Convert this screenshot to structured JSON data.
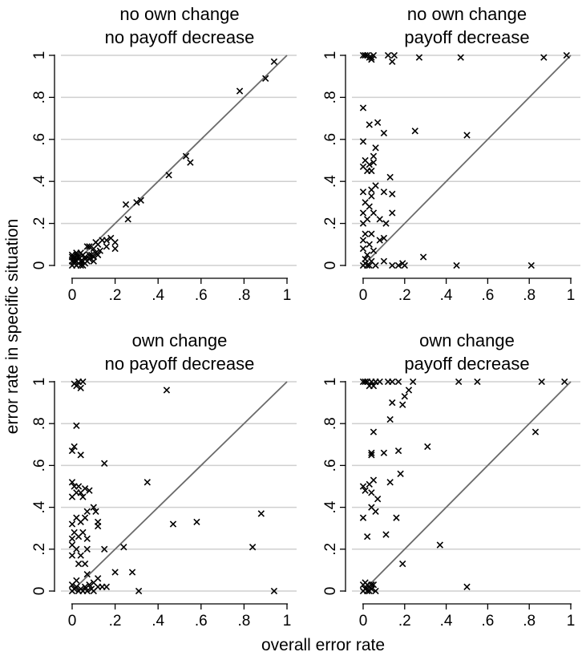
{
  "figure": {
    "xlabel": "overall error rate",
    "ylabel": "error rate in specific situation"
  },
  "chart_data": [
    {
      "type": "scatter",
      "title_lines": [
        "no own change",
        "no payoff decrease"
      ],
      "xlim": [
        0,
        1
      ],
      "ylim": [
        0,
        1
      ],
      "x_ticks": [
        0,
        0.2,
        0.4,
        0.6,
        0.8,
        1
      ],
      "x_tick_labels": [
        "0",
        ".2",
        ".4",
        ".6",
        ".8",
        "1"
      ],
      "y_ticks": [
        0,
        0.2,
        0.4,
        0.6,
        0.8,
        1
      ],
      "y_tick_labels": [
        "0",
        ".2",
        ".4",
        ".6",
        ".8",
        "1"
      ],
      "grid": true,
      "reference_line": "y = x",
      "marker": "x",
      "points": [
        [
          0.94,
          0.97
        ],
        [
          0.9,
          0.89
        ],
        [
          0.78,
          0.83
        ],
        [
          0.53,
          0.52
        ],
        [
          0.55,
          0.49
        ],
        [
          0.45,
          0.43
        ],
        [
          0.32,
          0.31
        ],
        [
          0.3,
          0.3
        ],
        [
          0.25,
          0.29
        ],
        [
          0.26,
          0.22
        ],
        [
          0.2,
          0.11
        ],
        [
          0.18,
          0.13
        ],
        [
          0.16,
          0.12
        ],
        [
          0.14,
          0.12
        ],
        [
          0.2,
          0.08
        ],
        [
          0.16,
          0.09
        ],
        [
          0.12,
          0.1
        ],
        [
          0.11,
          0.11
        ],
        [
          0.1,
          0.08
        ],
        [
          0.08,
          0.09
        ],
        [
          0.07,
          0.09
        ],
        [
          0.13,
          0.07
        ],
        [
          0.12,
          0.05
        ],
        [
          0.1,
          0.04
        ],
        [
          0.08,
          0.05
        ],
        [
          0.06,
          0.04
        ],
        [
          0.05,
          0.05
        ],
        [
          0.04,
          0.06
        ],
        [
          0.03,
          0.04
        ],
        [
          0.02,
          0.05
        ],
        [
          0.01,
          0.04
        ],
        [
          0.0,
          0.04
        ],
        [
          0.0,
          0.02
        ],
        [
          0.0,
          0.0
        ],
        [
          0.01,
          0.01
        ],
        [
          0.02,
          0.0
        ],
        [
          0.03,
          0.01
        ],
        [
          0.04,
          0.0
        ],
        [
          0.05,
          0.02
        ],
        [
          0.06,
          0.01
        ],
        [
          0.07,
          0.02
        ],
        [
          0.08,
          0.03
        ],
        [
          0.02,
          0.02
        ],
        [
          0.01,
          0.03
        ],
        [
          0.03,
          0.03
        ],
        [
          0.04,
          0.02
        ],
        [
          0.05,
          0.0
        ],
        [
          0.06,
          0.03
        ],
        [
          0.09,
          0.05
        ],
        [
          0.11,
          0.06
        ],
        [
          0.1,
          0.02
        ],
        [
          0.02,
          0.06
        ],
        [
          0.0,
          0.05
        ],
        [
          0.01,
          0.02
        ]
      ]
    },
    {
      "type": "scatter",
      "title_lines": [
        "no own change",
        "payoff decrease"
      ],
      "xlim": [
        0,
        1
      ],
      "ylim": [
        0,
        1
      ],
      "x_ticks": [
        0,
        0.2,
        0.4,
        0.6,
        0.8,
        1
      ],
      "x_tick_labels": [
        "0",
        ".2",
        ".4",
        ".6",
        ".8",
        "1"
      ],
      "y_ticks": [
        0,
        0.2,
        0.4,
        0.6,
        0.8,
        1
      ],
      "y_tick_labels": [
        "0",
        ".2",
        ".4",
        ".6",
        ".8",
        "1"
      ],
      "grid": true,
      "reference_line": "y = x",
      "marker": "x",
      "points": [
        [
          0.98,
          1.0
        ],
        [
          0.87,
          0.99
        ],
        [
          0.47,
          0.99
        ],
        [
          0.27,
          0.99
        ],
        [
          0.15,
          1.0
        ],
        [
          0.14,
          0.97
        ],
        [
          0.12,
          1.0
        ],
        [
          0.05,
          1.0
        ],
        [
          0.04,
          0.99
        ],
        [
          0.04,
          0.98
        ],
        [
          0.02,
          1.0
        ],
        [
          0.01,
          1.0
        ],
        [
          0.0,
          1.0
        ],
        [
          0.03,
          0.99
        ],
        [
          0.0,
          0.75
        ],
        [
          0.03,
          0.67
        ],
        [
          0.07,
          0.68
        ],
        [
          0.1,
          0.63
        ],
        [
          0.25,
          0.64
        ],
        [
          0.5,
          0.62
        ],
        [
          0.0,
          0.59
        ],
        [
          0.06,
          0.56
        ],
        [
          0.05,
          0.52
        ],
        [
          0.05,
          0.49
        ],
        [
          0.03,
          0.48
        ],
        [
          0.01,
          0.5
        ],
        [
          0.0,
          0.47
        ],
        [
          0.02,
          0.45
        ],
        [
          0.04,
          0.45
        ],
        [
          0.13,
          0.42
        ],
        [
          0.04,
          0.36
        ],
        [
          0.04,
          0.33
        ],
        [
          0.06,
          0.38
        ],
        [
          0.1,
          0.35
        ],
        [
          0.14,
          0.34
        ],
        [
          0.0,
          0.35
        ],
        [
          0.01,
          0.3
        ],
        [
          0.03,
          0.28
        ],
        [
          0.0,
          0.25
        ],
        [
          0.02,
          0.22
        ],
        [
          0.05,
          0.25
        ],
        [
          0.08,
          0.22
        ],
        [
          0.14,
          0.25
        ],
        [
          0.11,
          0.2
        ],
        [
          0.0,
          0.2
        ],
        [
          0.01,
          0.15
        ],
        [
          0.04,
          0.15
        ],
        [
          0.08,
          0.12
        ],
        [
          0.1,
          0.13
        ],
        [
          0.03,
          0.1
        ],
        [
          0.0,
          0.08
        ],
        [
          0.02,
          0.05
        ],
        [
          0.05,
          0.07
        ],
        [
          0.04,
          0.02
        ],
        [
          0.1,
          0.02
        ],
        [
          0.29,
          0.04
        ],
        [
          0.45,
          0.0
        ],
        [
          0.81,
          0.0
        ],
        [
          0.0,
          0.0
        ],
        [
          0.01,
          0.01
        ],
        [
          0.02,
          0.0
        ],
        [
          0.03,
          0.0
        ],
        [
          0.06,
          0.0
        ],
        [
          0.14,
          0.0
        ],
        [
          0.17,
          0.0
        ],
        [
          0.2,
          0.0
        ],
        [
          0.19,
          0.01
        ],
        [
          0.01,
          0.03
        ],
        [
          0.0,
          0.12
        ]
      ]
    },
    {
      "type": "scatter",
      "title_lines": [
        "own change",
        "no payoff decrease"
      ],
      "xlim": [
        0,
        1
      ],
      "ylim": [
        0,
        1
      ],
      "x_ticks": [
        0,
        0.2,
        0.4,
        0.6,
        0.8,
        1
      ],
      "x_tick_labels": [
        "0",
        ".2",
        ".4",
        ".6",
        ".8",
        "1"
      ],
      "y_ticks": [
        0,
        0.2,
        0.4,
        0.6,
        0.8,
        1
      ],
      "y_tick_labels": [
        "0",
        ".2",
        ".4",
        ".6",
        ".8",
        "1"
      ],
      "grid": true,
      "reference_line": "y = x",
      "marker": "x",
      "points": [
        [
          0.03,
          1.0
        ],
        [
          0.01,
          0.99
        ],
        [
          0.05,
          1.0
        ],
        [
          0.04,
          0.97
        ],
        [
          0.02,
          0.98
        ],
        [
          0.44,
          0.96
        ],
        [
          0.02,
          0.79
        ],
        [
          0.01,
          0.69
        ],
        [
          0.0,
          0.67
        ],
        [
          0.04,
          0.65
        ],
        [
          0.15,
          0.61
        ],
        [
          0.35,
          0.52
        ],
        [
          0.0,
          0.52
        ],
        [
          0.01,
          0.5
        ],
        [
          0.03,
          0.5
        ],
        [
          0.06,
          0.49
        ],
        [
          0.04,
          0.47
        ],
        [
          0.05,
          0.45
        ],
        [
          0.08,
          0.48
        ],
        [
          0.02,
          0.47
        ],
        [
          0.0,
          0.45
        ],
        [
          0.1,
          0.4
        ],
        [
          0.11,
          0.38
        ],
        [
          0.12,
          0.33
        ],
        [
          0.12,
          0.31
        ],
        [
          0.07,
          0.38
        ],
        [
          0.06,
          0.35
        ],
        [
          0.04,
          0.33
        ],
        [
          0.02,
          0.35
        ],
        [
          0.0,
          0.32
        ],
        [
          0.01,
          0.28
        ],
        [
          0.0,
          0.25
        ],
        [
          0.03,
          0.26
        ],
        [
          0.05,
          0.28
        ],
        [
          0.07,
          0.25
        ],
        [
          0.0,
          0.22
        ],
        [
          0.02,
          0.2
        ],
        [
          0.07,
          0.2
        ],
        [
          0.0,
          0.17
        ],
        [
          0.04,
          0.17
        ],
        [
          0.06,
          0.13
        ],
        [
          0.03,
          0.13
        ],
        [
          0.15,
          0.2
        ],
        [
          0.24,
          0.21
        ],
        [
          0.88,
          0.37
        ],
        [
          0.58,
          0.33
        ],
        [
          0.47,
          0.32
        ],
        [
          0.84,
          0.21
        ],
        [
          0.2,
          0.09
        ],
        [
          0.28,
          0.09
        ],
        [
          0.94,
          0.0
        ],
        [
          0.31,
          0.0
        ],
        [
          0.12,
          0.06
        ],
        [
          0.07,
          0.08
        ],
        [
          0.16,
          0.02
        ],
        [
          0.14,
          0.02
        ],
        [
          0.0,
          0.0
        ],
        [
          0.01,
          0.01
        ],
        [
          0.02,
          0.02
        ],
        [
          0.03,
          0.0
        ],
        [
          0.04,
          0.01
        ],
        [
          0.05,
          0.0
        ],
        [
          0.06,
          0.02
        ],
        [
          0.07,
          0.0
        ],
        [
          0.08,
          0.03
        ],
        [
          0.09,
          0.01
        ],
        [
          0.1,
          0.0
        ],
        [
          0.12,
          0.02
        ],
        [
          0.02,
          0.05
        ],
        [
          0.0,
          0.03
        ],
        [
          0.1,
          0.04
        ]
      ]
    },
    {
      "type": "scatter",
      "title_lines": [
        "own change",
        "payoff decrease"
      ],
      "xlim": [
        0,
        1
      ],
      "ylim": [
        0,
        1
      ],
      "x_ticks": [
        0,
        0.2,
        0.4,
        0.6,
        0.8,
        1
      ],
      "x_tick_labels": [
        "0",
        ".2",
        ".4",
        ".6",
        ".8",
        "1"
      ],
      "y_ticks": [
        0,
        0.2,
        0.4,
        0.6,
        0.8,
        1
      ],
      "y_tick_labels": [
        "0",
        ".2",
        ".4",
        ".6",
        ".8",
        "1"
      ],
      "grid": true,
      "reference_line": "y = x",
      "marker": "x",
      "points": [
        [
          0.97,
          1.0
        ],
        [
          0.86,
          1.0
        ],
        [
          0.55,
          1.0
        ],
        [
          0.46,
          1.0
        ],
        [
          0.24,
          1.0
        ],
        [
          0.17,
          1.0
        ],
        [
          0.14,
          1.0
        ],
        [
          0.12,
          1.0
        ],
        [
          0.08,
          1.0
        ],
        [
          0.06,
          1.0
        ],
        [
          0.04,
          1.0
        ],
        [
          0.02,
          1.0
        ],
        [
          0.01,
          1.0
        ],
        [
          0.0,
          1.0
        ],
        [
          0.03,
          0.98
        ],
        [
          0.05,
          0.98
        ],
        [
          0.22,
          0.96
        ],
        [
          0.2,
          0.93
        ],
        [
          0.14,
          0.9
        ],
        [
          0.13,
          0.82
        ],
        [
          0.19,
          0.89
        ],
        [
          0.05,
          0.76
        ],
        [
          0.83,
          0.76
        ],
        [
          0.17,
          0.67
        ],
        [
          0.31,
          0.69
        ],
        [
          0.1,
          0.66
        ],
        [
          0.04,
          0.65
        ],
        [
          0.04,
          0.66
        ],
        [
          0.18,
          0.56
        ],
        [
          0.13,
          0.52
        ],
        [
          0.05,
          0.53
        ],
        [
          0.03,
          0.51
        ],
        [
          0.0,
          0.5
        ],
        [
          0.01,
          0.48
        ],
        [
          0.04,
          0.47
        ],
        [
          0.07,
          0.44
        ],
        [
          0.04,
          0.4
        ],
        [
          0.06,
          0.38
        ],
        [
          0.0,
          0.35
        ],
        [
          0.16,
          0.35
        ],
        [
          0.11,
          0.27
        ],
        [
          0.02,
          0.26
        ],
        [
          0.37,
          0.22
        ],
        [
          0.19,
          0.13
        ],
        [
          0.5,
          0.02
        ],
        [
          0.0,
          0.0
        ],
        [
          0.01,
          0.01
        ],
        [
          0.02,
          0.0
        ],
        [
          0.03,
          0.02
        ],
        [
          0.04,
          0.01
        ],
        [
          0.05,
          0.03
        ],
        [
          0.06,
          0.0
        ],
        [
          0.02,
          0.03
        ],
        [
          0.0,
          0.03
        ],
        [
          0.01,
          0.04
        ],
        [
          0.03,
          0.0
        ],
        [
          0.04,
          0.03
        ]
      ]
    }
  ]
}
